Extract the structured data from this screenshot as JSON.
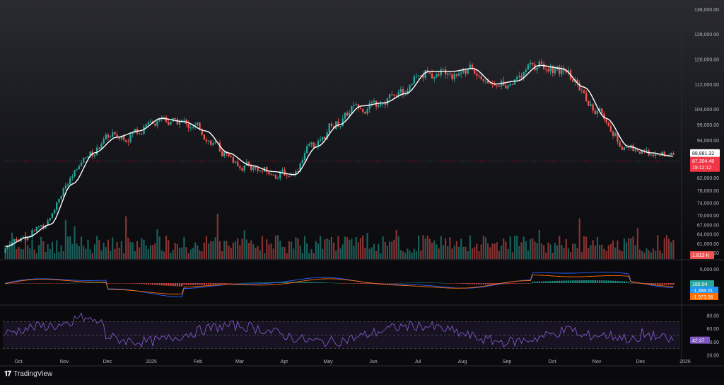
{
  "chart_data": {
    "type": "candlestick",
    "symbol_hint": "BTC",
    "y_axis_ticks": [
      "136,000.00",
      "128,000.00",
      "120,000.00",
      "112,000.00",
      "104,000.00",
      "99,000.00",
      "94,000.00",
      "88,881.32",
      "87,304.48",
      "82,000.00",
      "78,000.00",
      "74,000.00",
      "70,000.00",
      "67,000.00",
      "64,000.00",
      "61,000.00",
      "58,000.00"
    ],
    "ylim": [
      56000,
      138000
    ],
    "x_axis_ticks": [
      "Oct",
      "Nov",
      "Dec",
      "2025",
      "Feb",
      "Mar",
      "Apr",
      "May",
      "Jun",
      "Jul",
      "Aug",
      "Sep",
      "Oct",
      "Nov",
      "Dec",
      "2026"
    ],
    "moving_average": [
      {
        "date": "Oct",
        "value": 60000
      },
      {
        "date": "Oct-mid",
        "value": 63000
      },
      {
        "date": "Nov",
        "value": 67000
      },
      {
        "date": "Nov-mid",
        "value": 80000
      },
      {
        "date": "Dec",
        "value": 90000
      },
      {
        "date": "Dec-mid",
        "value": 95000
      },
      {
        "date": "2025",
        "value": 97000
      },
      {
        "date": "Jan-mid",
        "value": 101000
      },
      {
        "date": "Feb",
        "value": 100000
      },
      {
        "date": "Feb-mid",
        "value": 97000
      },
      {
        "date": "Mar",
        "value": 90000
      },
      {
        "date": "Mar-mid",
        "value": 86000
      },
      {
        "date": "Apr",
        "value": 84000
      },
      {
        "date": "Apr-mid",
        "value": 83000
      },
      {
        "date": "May",
        "value": 92000
      },
      {
        "date": "May-mid",
        "value": 99000
      },
      {
        "date": "Jun",
        "value": 105000
      },
      {
        "date": "Jun-mid",
        "value": 106000
      },
      {
        "date": "Jul",
        "value": 109000
      },
      {
        "date": "Jul-mid",
        "value": 116000
      },
      {
        "date": "Aug",
        "value": 116000
      },
      {
        "date": "Aug-mid",
        "value": 117000
      },
      {
        "date": "Sep",
        "value": 112000
      },
      {
        "date": "Sep-mid",
        "value": 113000
      },
      {
        "date": "Oct",
        "value": 118000
      },
      {
        "date": "Oct-mid",
        "value": 117000
      },
      {
        "date": "Nov",
        "value": 111000
      },
      {
        "date": "Nov-mid",
        "value": 101000
      },
      {
        "date": "Dec",
        "value": 92000
      },
      {
        "date": "Dec-mid",
        "value": 90000
      },
      {
        "date": "Dec-end",
        "value": 88881.32
      }
    ],
    "price_labels": {
      "moving_average": "88,881.32",
      "last_price": "87,304.48",
      "countdown": "19:12:12",
      "volume": "1.813 K"
    },
    "macd": {
      "axis_tick": "5,000.00",
      "histogram_label": "185.04",
      "macd_label": "-1,388.01",
      "signal_label": "-1,573.06"
    },
    "rsi": {
      "axis_ticks": [
        "80.00",
        "60.00",
        "40.00",
        "20.00"
      ],
      "value_label": "42.37",
      "band": [
        30,
        70
      ]
    },
    "colors": {
      "up": "#26a69a",
      "down": "#ef5350",
      "ma": "#ffffff",
      "macd_line": "#2962ff",
      "signal_line": "#ff6d00",
      "rsi_line": "#7e57c2",
      "last_price_bg": "#f23645",
      "macd_label_bg": "#2196f3",
      "signal_label_bg": "#ff6d00",
      "rsi_label_bg": "#7e57c2"
    }
  },
  "footer": {
    "brand": "TradingView"
  }
}
